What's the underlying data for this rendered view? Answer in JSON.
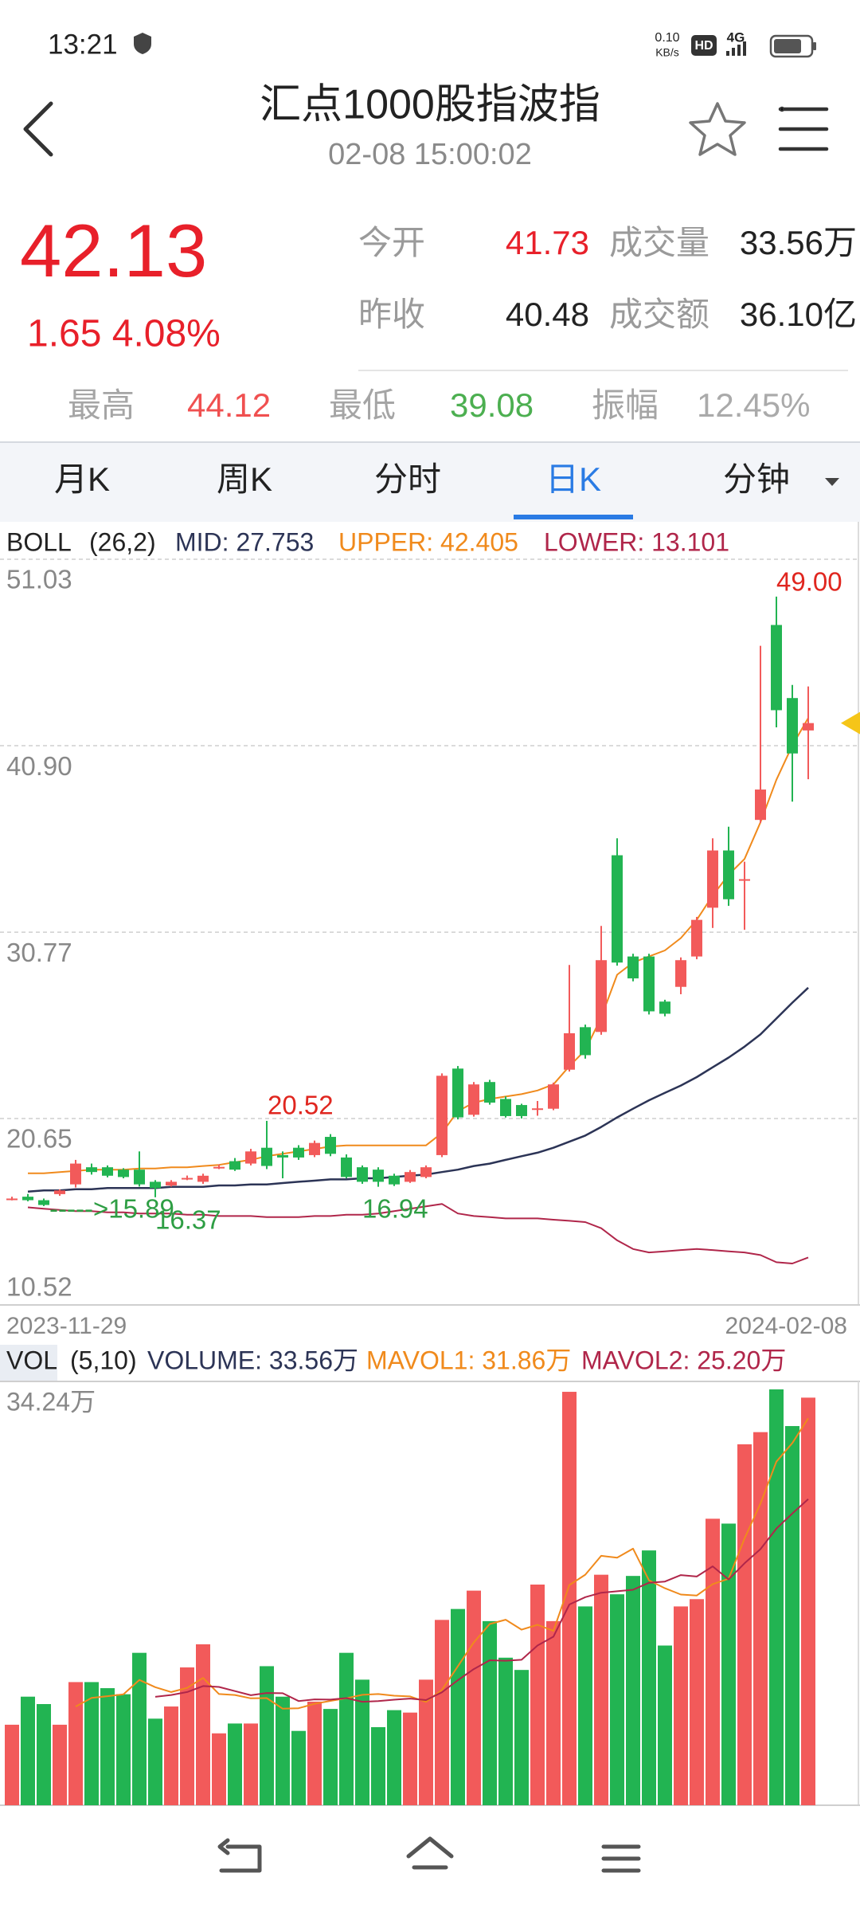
{
  "status_bar": {
    "time": "13:21",
    "net_speed": "0.10",
    "net_unit": "KB/s",
    "hd": "HD",
    "network": "4G"
  },
  "header": {
    "title": "汇点1000股指波指",
    "subtitle": "02-08  15:00:02"
  },
  "quote": {
    "price": "42.13",
    "change": "1.65 4.08%",
    "stats": [
      {
        "label": "今开",
        "value": "41.73"
      },
      {
        "label": "成交量",
        "value": "33.56万"
      },
      {
        "label": "昨收",
        "value": "40.48"
      },
      {
        "label": "成交额",
        "value": "36.10亿"
      }
    ],
    "range": [
      {
        "label": "最高",
        "value": "44.12"
      },
      {
        "label": "最低",
        "value": "39.08"
      },
      {
        "label": "振幅",
        "value": "12.45%"
      }
    ]
  },
  "tabs": {
    "items": [
      "月K",
      "周K",
      "分时",
      "日K",
      "分钟"
    ],
    "active": 3
  },
  "chart_data": [
    {
      "type": "candlestick",
      "indicator": "BOLL",
      "params": "(26,2)",
      "categories": [
        "2023-11-29",
        null,
        null,
        null,
        null,
        null,
        null,
        null,
        null,
        null,
        null,
        null,
        null,
        null,
        null,
        null,
        null,
        null,
        null,
        null,
        null,
        null,
        null,
        null,
        null,
        null,
        null,
        null,
        null,
        null,
        null,
        null,
        null,
        null,
        null,
        null,
        null,
        null,
        null,
        null,
        null,
        null,
        null,
        null,
        null,
        null,
        null,
        null,
        null,
        null,
        "2024-02-08"
      ],
      "open": [
        16.27,
        16.4,
        16.21,
        16.54,
        17.07,
        18.0,
        18.0,
        17.87,
        17.87,
        17.21,
        17.01,
        17.4,
        17.21,
        18.0,
        18.33,
        18.2,
        19.06,
        18.66,
        19.06,
        18.66,
        19.65,
        18.53,
        18.0,
        17.87,
        17.54,
        17.21,
        17.47,
        18.66,
        23.36,
        20.85,
        22.63,
        21.71,
        21.38,
        21.18,
        21.18,
        23.3,
        25.61,
        25.35,
        34.95,
        29.45,
        29.45,
        27.0,
        27.8,
        29.45,
        32.1,
        35.21,
        33.62,
        36.87,
        47.46,
        43.49,
        41.73
      ],
      "high": [
        16.4,
        16.55,
        16.3,
        16.8,
        18.4,
        18.2,
        18.1,
        17.95,
        18.86,
        17.3,
        17.3,
        17.55,
        17.65,
        18.15,
        18.5,
        19.0,
        20.52,
        18.86,
        19.2,
        19.45,
        19.8,
        18.7,
        18.1,
        18.0,
        17.65,
        17.85,
        18.1,
        23.1,
        23.5,
        22.63,
        22.75,
        21.85,
        21.45,
        21.6,
        22.6,
        28.99,
        25.75,
        31.11,
        35.87,
        29.6,
        29.6,
        27.1,
        29.4,
        31.6,
        35.87,
        36.5,
        34.6,
        46.33,
        49.0,
        44.2,
        44.12
      ],
      "low": [
        16.2,
        16.15,
        15.89,
        16.45,
        16.9,
        17.6,
        17.45,
        17.4,
        16.95,
        16.37,
        16.95,
        17.3,
        17.1,
        17.9,
        17.8,
        18.1,
        17.9,
        17.4,
        18.4,
        18.55,
        18.6,
        17.4,
        17.1,
        16.94,
        16.98,
        17.15,
        17.4,
        18.55,
        20.6,
        20.75,
        21.4,
        20.7,
        20.65,
        20.8,
        21.1,
        23.2,
        23.9,
        25.2,
        28.95,
        28.1,
        26.3,
        26.2,
        27.4,
        29.3,
        31.0,
        32.2,
        30.9,
        36.7,
        41.9,
        37.86,
        39.08
      ],
      "close": [
        16.3,
        16.21,
        15.95,
        16.74,
        18.2,
        17.74,
        17.54,
        17.47,
        17.07,
        16.87,
        17.21,
        17.42,
        17.54,
        18.02,
        17.87,
        18.86,
        18.07,
        18.53,
        18.53,
        19.32,
        18.73,
        17.47,
        17.21,
        17.21,
        17.07,
        17.74,
        18.0,
        22.97,
        20.71,
        22.5,
        21.51,
        20.78,
        20.78,
        21.2,
        22.5,
        25.28,
        24.09,
        29.25,
        29.12,
        28.26,
        26.47,
        26.34,
        29.25,
        31.44,
        35.21,
        32.56,
        33.65,
        38.52,
        42.83,
        40.48,
        42.13
      ],
      "up_color": "#f25a5a",
      "down_color": "#22b452",
      "series": [
        {
          "name": "MID: 27.753",
          "color": "#2c3456",
          "values": [
            null,
            16.68,
            16.74,
            16.74,
            16.81,
            16.81,
            16.87,
            16.87,
            16.87,
            16.87,
            16.94,
            16.94,
            16.94,
            17.01,
            17.01,
            17.07,
            17.07,
            17.14,
            17.21,
            17.27,
            17.34,
            17.34,
            17.4,
            17.4,
            17.47,
            17.54,
            17.6,
            17.74,
            17.87,
            18.07,
            18.2,
            18.4,
            18.6,
            18.79,
            19.06,
            19.39,
            19.72,
            20.19,
            20.71,
            21.18,
            21.64,
            22.04,
            22.44,
            22.9,
            23.43,
            23.96,
            24.55,
            25.22,
            26.08,
            26.94,
            27.753
          ]
        },
        {
          "name": "UPPER: 42.405",
          "color": "#f08a1c",
          "values": [
            null,
            17.67,
            17.67,
            17.74,
            17.8,
            17.87,
            17.87,
            17.87,
            17.93,
            17.93,
            18.0,
            18.0,
            18.07,
            18.13,
            18.27,
            18.4,
            18.6,
            18.73,
            18.86,
            18.99,
            19.13,
            19.19,
            19.19,
            19.19,
            19.19,
            19.19,
            19.19,
            19.86,
            21.05,
            21.51,
            21.71,
            21.84,
            21.97,
            22.17,
            22.5,
            23.49,
            24.36,
            26.14,
            28.46,
            29.12,
            29.45,
            29.78,
            30.45,
            31.44,
            32.76,
            33.89,
            34.75,
            36.74,
            39.05,
            40.91,
            42.405
          ]
        },
        {
          "name": "LOWER: 13.101",
          "color": "#b0264a",
          "values": [
            null,
            15.82,
            15.75,
            15.68,
            15.62,
            15.62,
            15.55,
            15.55,
            15.49,
            15.49,
            15.49,
            15.42,
            15.42,
            15.35,
            15.35,
            15.35,
            15.29,
            15.29,
            15.29,
            15.35,
            15.35,
            15.42,
            15.42,
            15.49,
            15.62,
            15.75,
            15.88,
            16.01,
            15.49,
            15.35,
            15.29,
            15.22,
            15.22,
            15.22,
            15.15,
            15.09,
            15.02,
            14.69,
            14.03,
            13.56,
            13.37,
            13.43,
            13.5,
            13.56,
            13.5,
            13.43,
            13.37,
            13.23,
            12.84,
            12.77,
            13.101
          ]
        }
      ],
      "ylim": [
        10.52,
        51.03
      ],
      "yticks": [
        51.03,
        {
          "value": 40.9,
          "label": "40.90"
        },
        30.77,
        20.65,
        10.52
      ],
      "grid": true,
      "annotations": [
        {
          "text": "49.00",
          "color": "#e0261f"
        },
        {
          "text": "20.52",
          "color": "#e0261f"
        },
        {
          "text": "----->15.89",
          "color": "#2e9e44"
        },
        {
          "text": "16.37",
          "color": "#2e9e44"
        },
        {
          "text": "16.94",
          "color": "#2e9e44"
        }
      ],
      "marker_color": "#f5c518"
    },
    {
      "type": "bar",
      "indicator": "VOL",
      "params": "(5,10)",
      "value_legend": "VOLUME: 33.56万",
      "value_legend_color": "#2c3456",
      "values": [
        6.63,
        8.94,
        8.33,
        6.63,
        10.14,
        10.14,
        9.64,
        9.14,
        12.55,
        7.13,
        8.13,
        11.35,
        13.25,
        5.92,
        6.73,
        6.73,
        11.45,
        8.94,
        6.12,
        8.53,
        7.93,
        12.55,
        10.34,
        6.43,
        7.83,
        7.63,
        10.34,
        15.26,
        16.16,
        17.67,
        15.16,
        12.15,
        11.14,
        18.17,
        15.16,
        34.04,
        16.37,
        18.98,
        17.37,
        18.88,
        20.98,
        13.15,
        16.37,
        16.97,
        23.59,
        23.19,
        29.72,
        30.72,
        34.24,
        31.22,
        33.56
      ],
      "series": [
        {
          "name": "MAVOL1: 31.86万",
          "color": "#f08a1c",
          "values": [
            null,
            null,
            null,
            null,
            8.13,
            8.84,
            8.98,
            9.14,
            10.32,
            9.72,
            9.32,
            9.66,
            10.48,
            9.16,
            9.08,
            8.8,
            8.82,
            7.95,
            7.99,
            8.35,
            8.59,
            8.81,
            9.09,
            9.16,
            9.02,
            8.96,
            8.51,
            9.5,
            11.44,
            13.41,
            14.92,
            15.28,
            14.46,
            14.86,
            14.36,
            18.13,
            18.98,
            20.54,
            20.38,
            21.13,
            18.52,
            17.87,
            17.35,
            17.27,
            18.21,
            18.65,
            21.97,
            24.84,
            28.29,
            29.82,
            31.86
          ]
        },
        {
          "name": "MAVOL2: 25.20万",
          "color": "#b0264a",
          "values": [
            null,
            null,
            null,
            null,
            null,
            null,
            null,
            null,
            null,
            8.93,
            9.08,
            9.32,
            9.81,
            9.74,
            9.4,
            9.06,
            9.24,
            9.22,
            8.58,
            8.72,
            8.7,
            8.82,
            8.52,
            8.58,
            8.69,
            8.78,
            8.66,
            9.3,
            10.3,
            11.21,
            11.94,
            11.9,
            11.98,
            13.15,
            13.88,
            16.53,
            17.13,
            17.5,
            17.62,
            17.74,
            18.32,
            18.42,
            18.95,
            18.83,
            19.67,
            18.59,
            19.92,
            21.09,
            22.78,
            24.02,
            25.2
          ]
        }
      ],
      "ylim": [
        0,
        34.24
      ],
      "yticks": [
        {
          "value": 34.24,
          "label": "34.24万"
        }
      ]
    }
  ]
}
